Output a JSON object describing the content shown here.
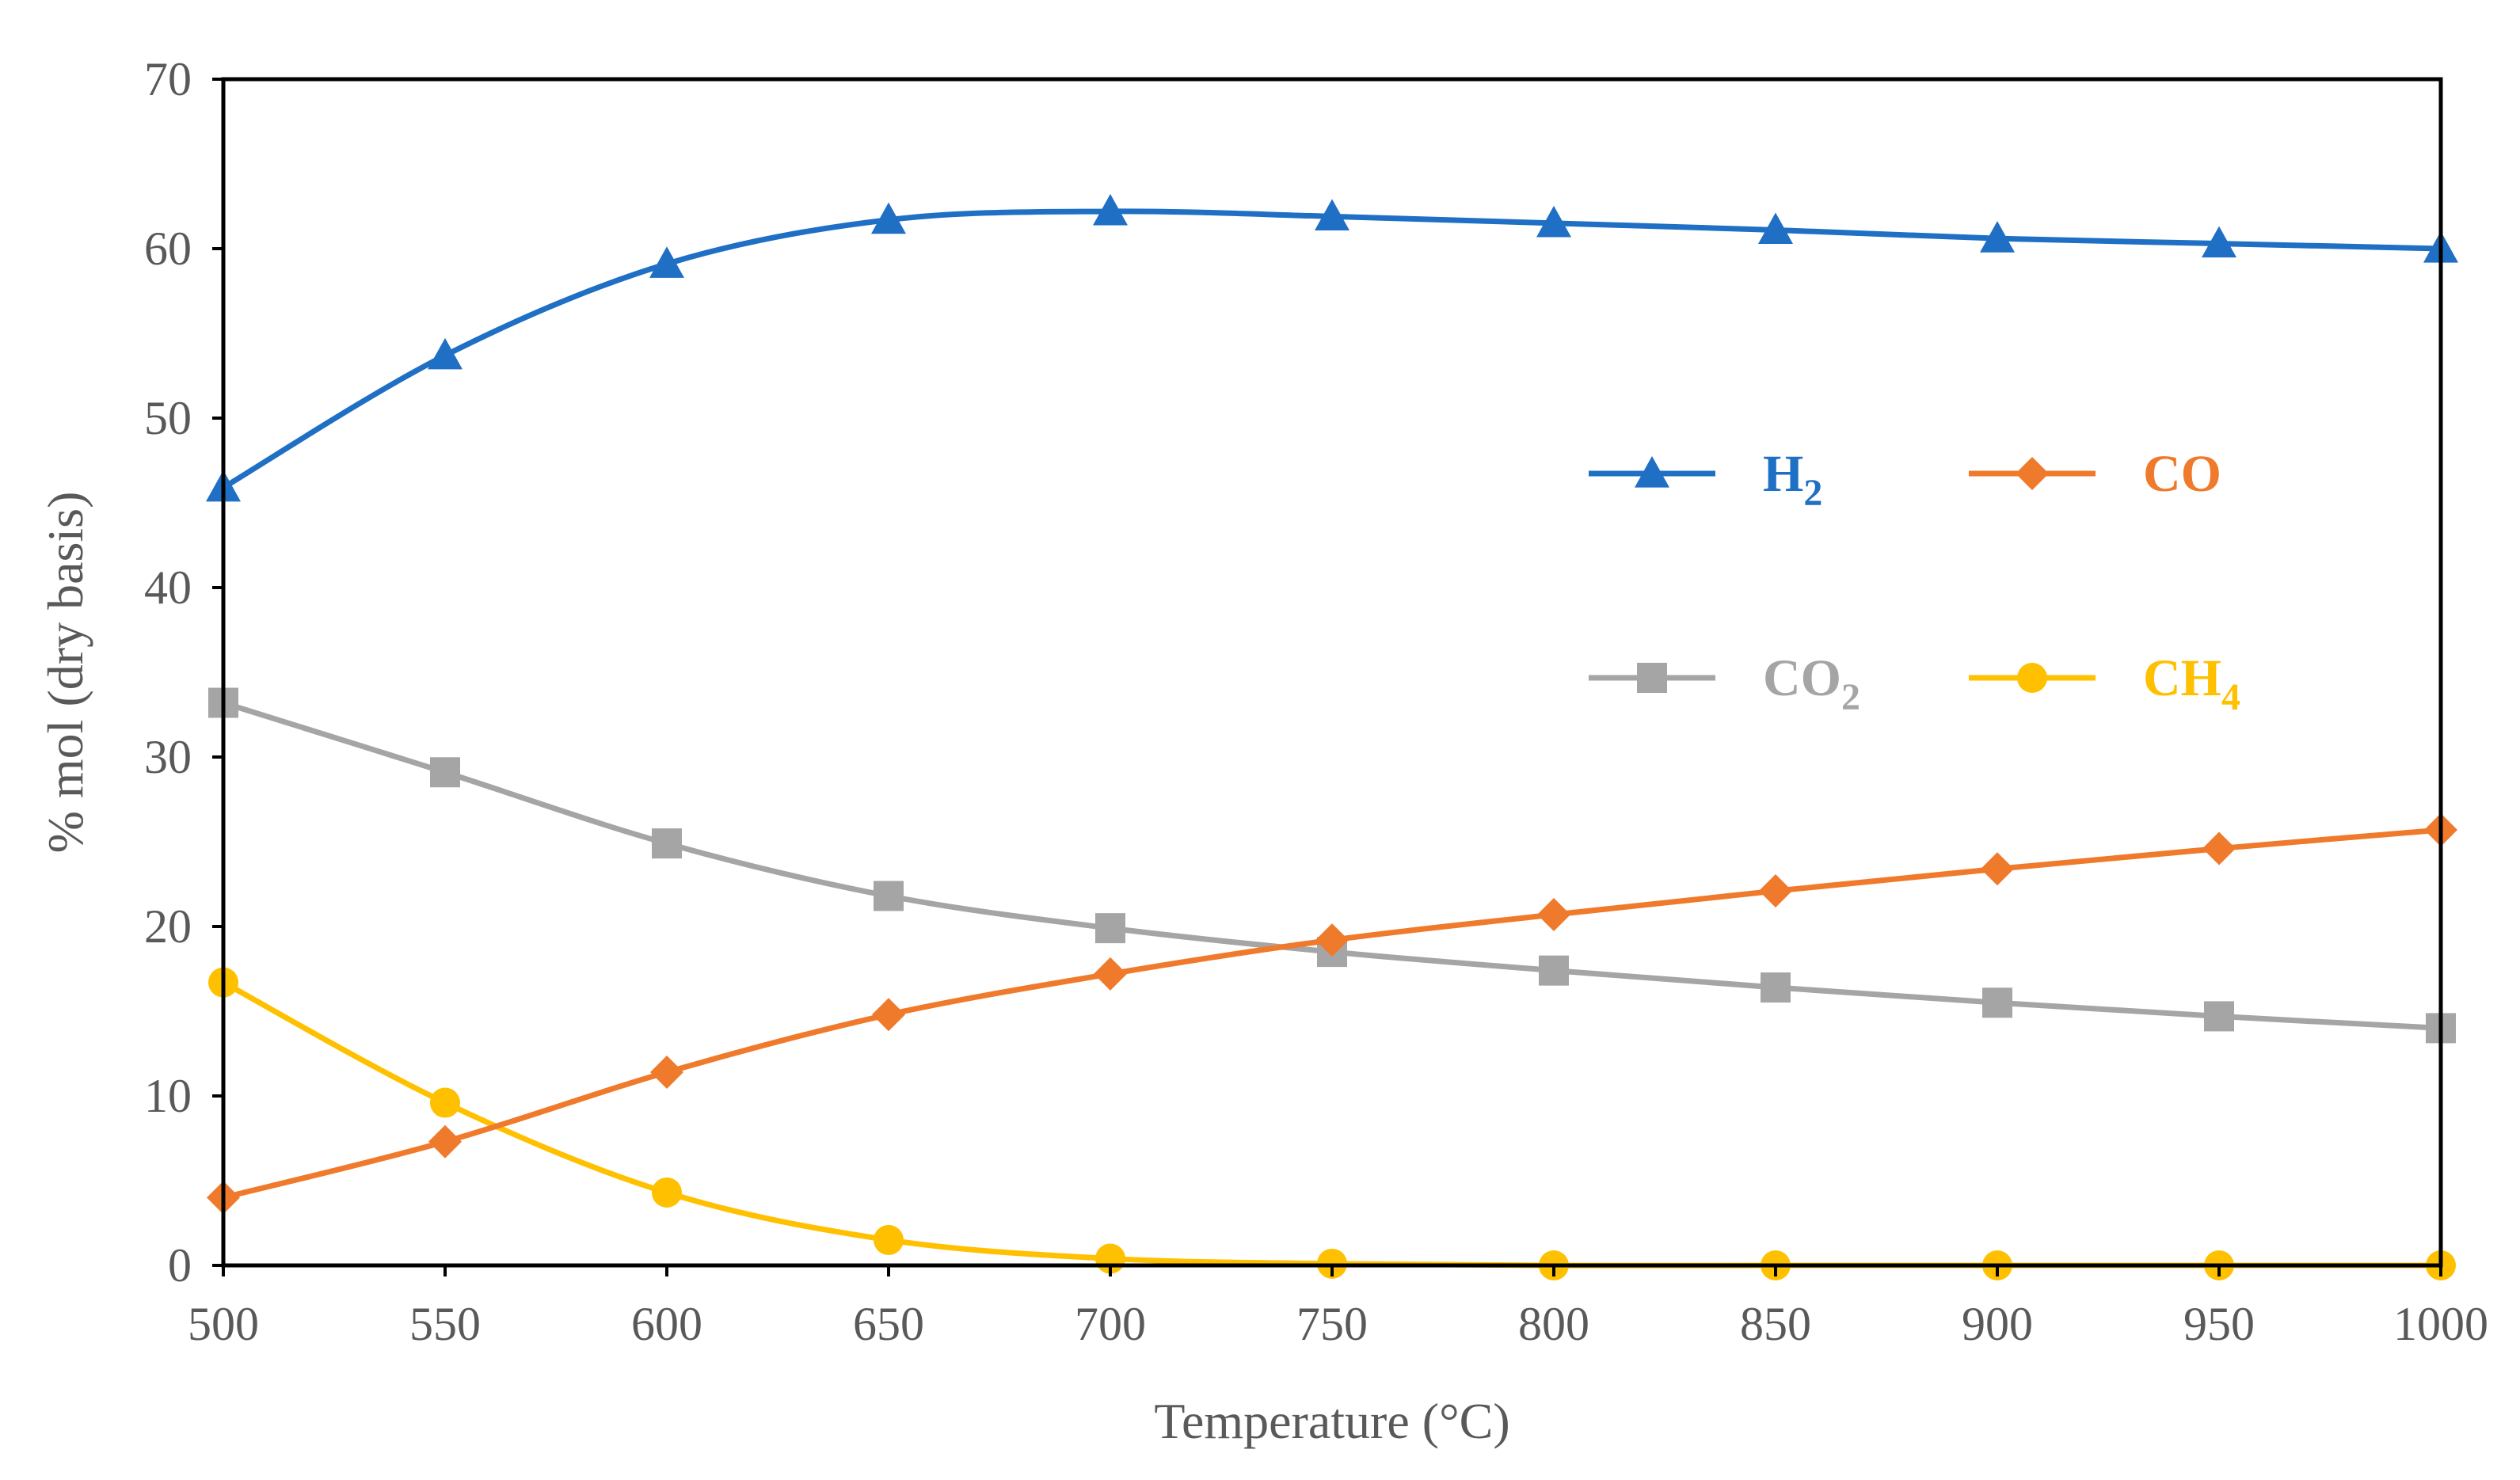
{
  "chart_data": {
    "type": "line",
    "title": "",
    "xlabel": "Temperature (°C)",
    "ylabel": "% mol (dry basis)",
    "x": [
      500,
      550,
      600,
      650,
      700,
      750,
      800,
      850,
      900,
      950,
      1000
    ],
    "xlim": [
      500,
      1000
    ],
    "ylim": [
      0,
      70
    ],
    "x_ticks": [
      "500",
      "550",
      "600",
      "650",
      "700",
      "750",
      "800",
      "850",
      "900",
      "950",
      "1000"
    ],
    "y_ticks": [
      "0",
      "10",
      "20",
      "30",
      "40",
      "50",
      "60",
      "70"
    ],
    "grid": false,
    "legend_position": "center-right",
    "series": [
      {
        "key": "h2",
        "name": "H2",
        "label_main": "H",
        "label_sub": "2",
        "color": "#1F6FC5",
        "marker": "triangle",
        "values": [
          45.9,
          53.7,
          59.1,
          61.7,
          62.2,
          61.9,
          61.5,
          61.1,
          60.6,
          60.3,
          60.0
        ]
      },
      {
        "key": "co",
        "name": "CO",
        "label_main": "CO",
        "label_sub": "",
        "color": "#F07A2B",
        "marker": "diamond",
        "values": [
          4.0,
          7.3,
          11.4,
          14.8,
          17.2,
          19.2,
          20.7,
          22.1,
          23.4,
          24.6,
          25.7
        ]
      },
      {
        "key": "co2",
        "name": "CO2",
        "label_main": "CO",
        "label_sub": "2",
        "color": "#A5A5A5",
        "marker": "square",
        "values": [
          33.2,
          29.1,
          24.9,
          21.8,
          19.9,
          18.5,
          17.4,
          16.4,
          15.5,
          14.7,
          14.0
        ]
      },
      {
        "key": "ch4",
        "name": "CH4",
        "label_main": "CH",
        "label_sub": "4",
        "color": "#FFC000",
        "marker": "circle",
        "values": [
          16.7,
          9.6,
          4.3,
          1.5,
          0.4,
          0.1,
          0.0,
          0.0,
          0.0,
          0.0,
          0.0
        ]
      }
    ]
  }
}
